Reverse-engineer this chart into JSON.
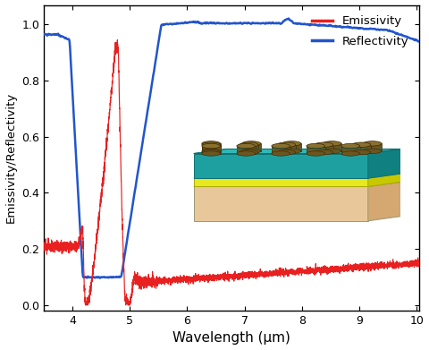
{
  "title": "",
  "xlabel": "Wavelength (μm)",
  "ylabel": "Emissivity/Reflectivity",
  "xlim": [
    3.5,
    10.05
  ],
  "ylim": [
    -0.02,
    1.07
  ],
  "yticks": [
    0.0,
    0.2,
    0.4,
    0.6,
    0.8,
    1.0
  ],
  "xticks": [
    4,
    5,
    6,
    7,
    8,
    9,
    10
  ],
  "emissivity_color": "#e82020",
  "reflectivity_color": "#2255cc",
  "legend_labels": [
    "Emissivity",
    "Reflectivity"
  ],
  "background_color": "#ffffff",
  "inset_colors": {
    "substrate": "#e8c89a",
    "substrate_side": "#d4a870",
    "yellow_layer": "#e8e820",
    "yellow_top": "#f0f060",
    "teal_layer": "#1fa0a0",
    "teal_top": "#30b8b8",
    "teal_light": "#80d8d8",
    "disk_body": "#6b5520",
    "disk_top": "#8a7030",
    "disk_outline": "#3a2800"
  }
}
